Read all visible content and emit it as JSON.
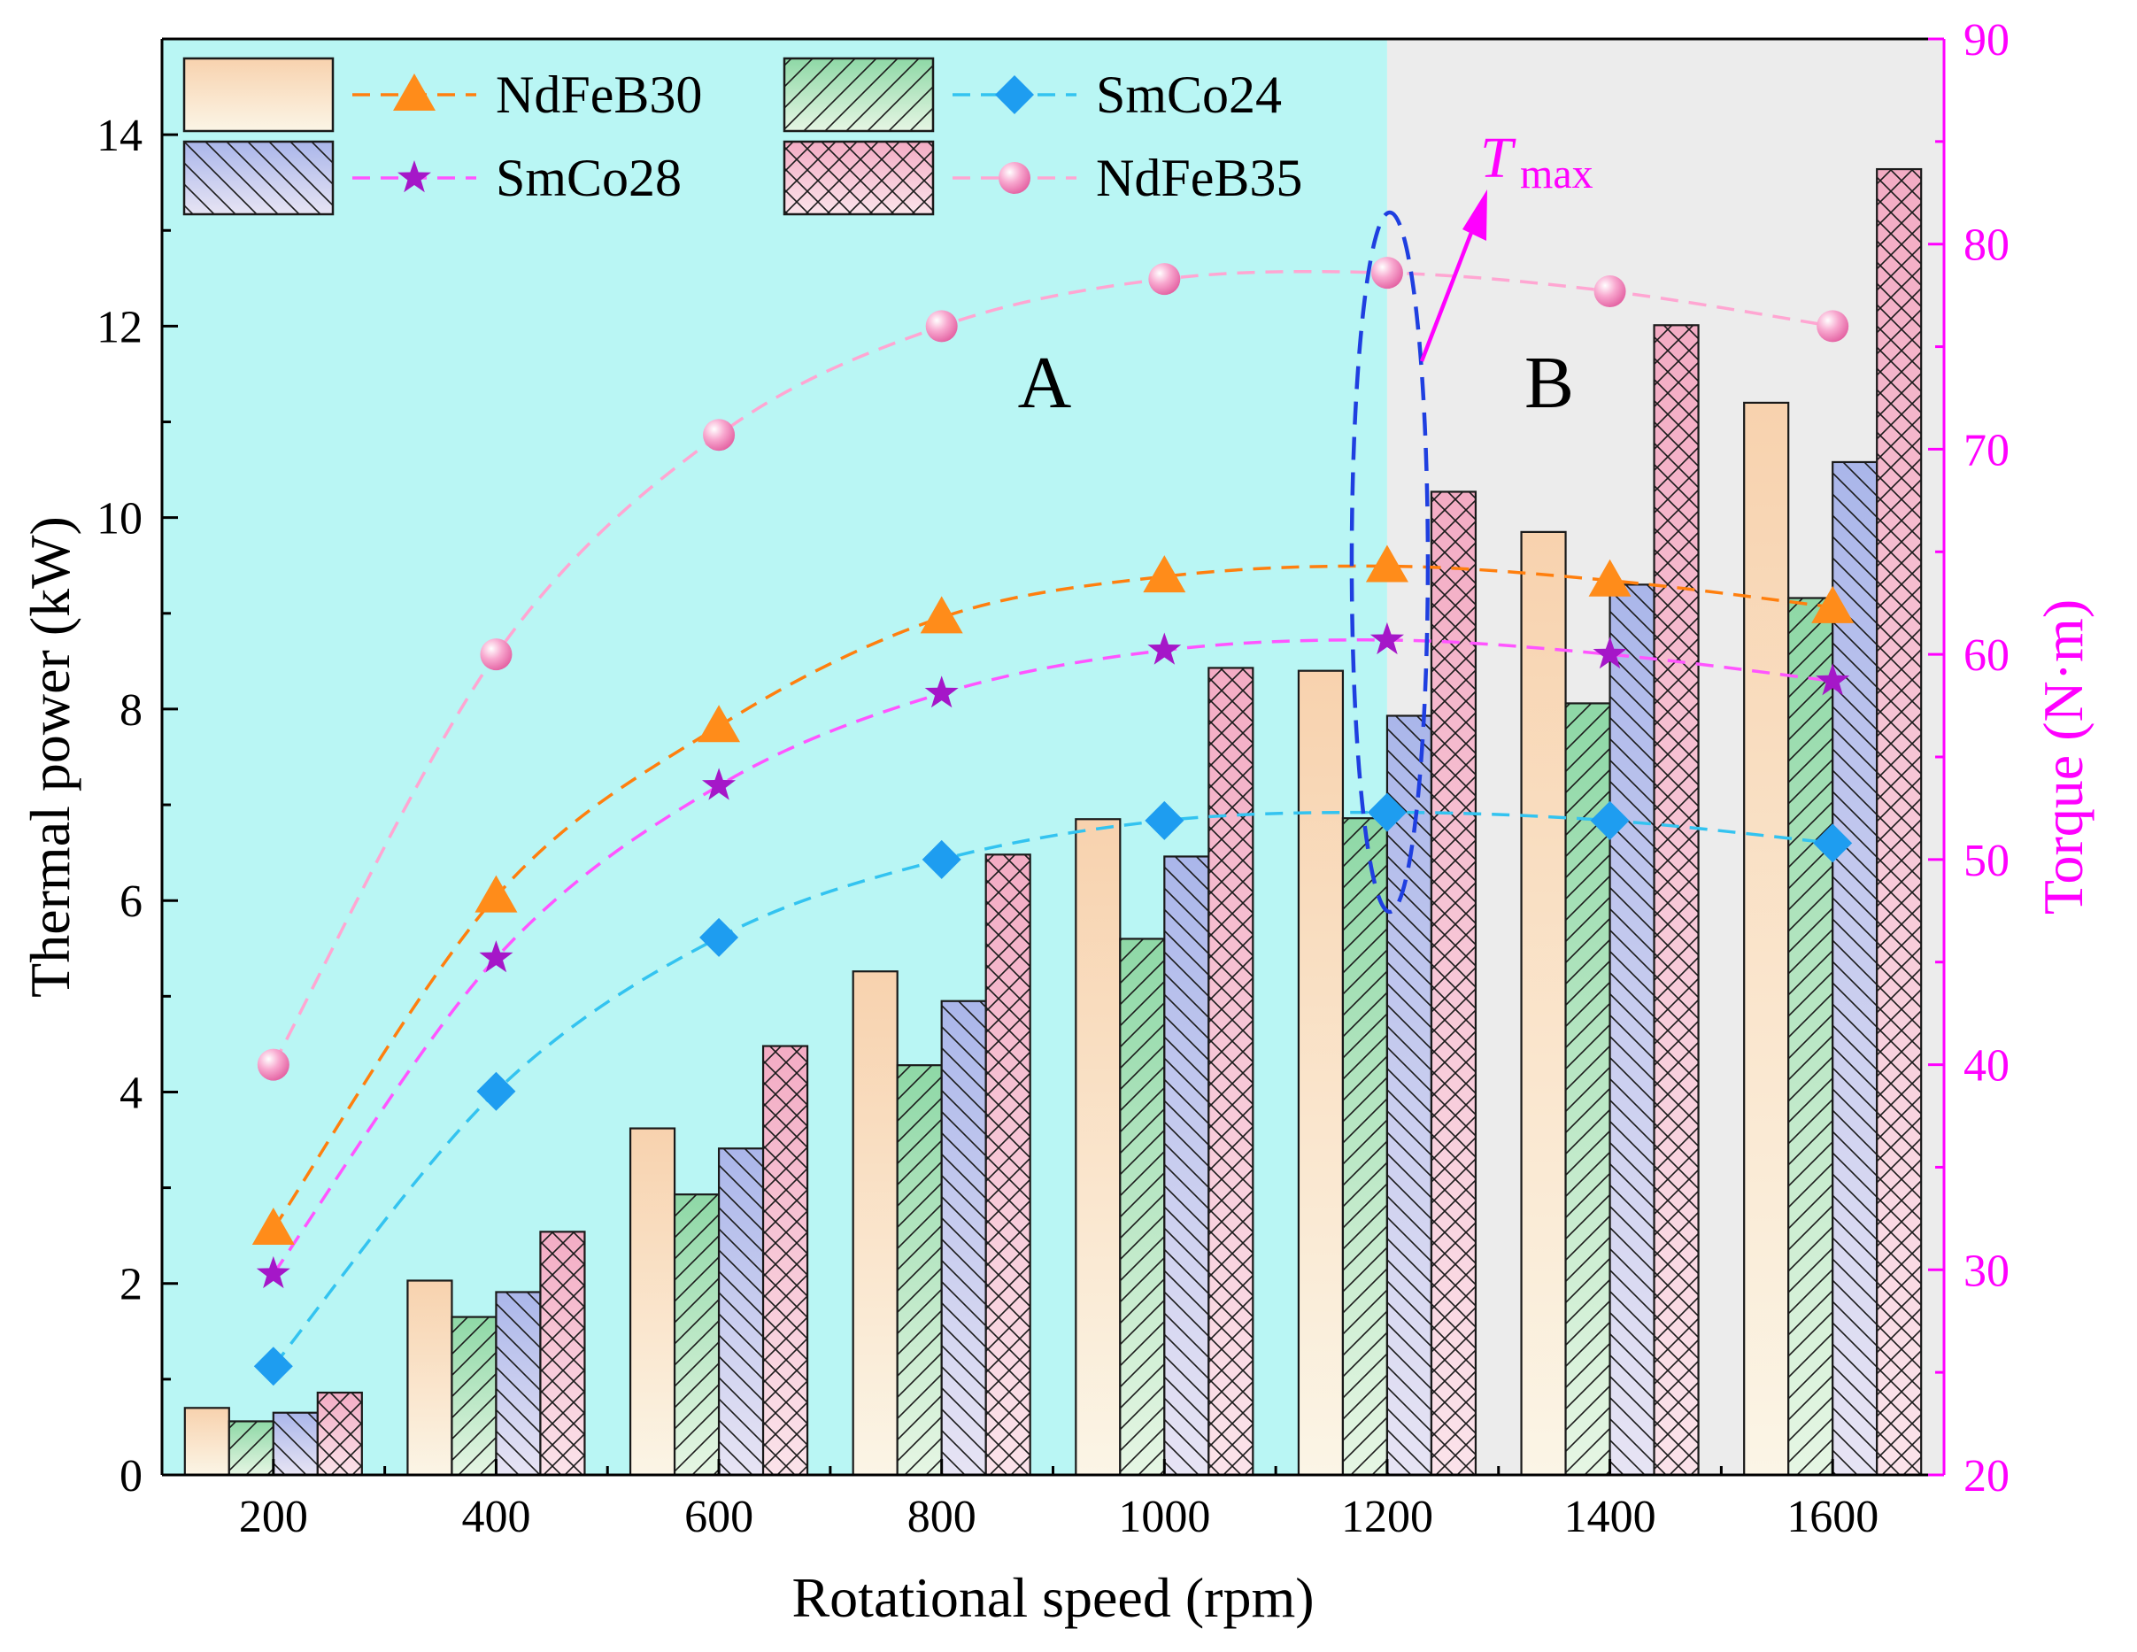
{
  "chart_data": {
    "type": "bar",
    "x": [
      200,
      400,
      600,
      800,
      1000,
      1200,
      1400,
      1600
    ],
    "xlabel": "Rotational speed (rpm)",
    "ylabel": "Thermal power (kW)",
    "y2label": "Torque (N·m)",
    "ylim": [
      0,
      15
    ],
    "y2lim": [
      20,
      90
    ],
    "xticks": [
      "200",
      "400",
      "600",
      "800",
      "1000",
      "1200",
      "1400",
      "1600"
    ],
    "yticks": [
      "0",
      "2",
      "4",
      "6",
      "8",
      "10",
      "12",
      "14"
    ],
    "y2ticks": [
      "20",
      "30",
      "40",
      "50",
      "60",
      "70",
      "80",
      "90"
    ],
    "bar_series": [
      {
        "name": "NdFeB30",
        "values": [
          0.7,
          2.03,
          3.62,
          5.26,
          6.85,
          8.4,
          9.85,
          11.2
        ]
      },
      {
        "name": "SmCo24",
        "values": [
          0.56,
          1.65,
          2.93,
          4.28,
          5.6,
          6.86,
          8.06,
          9.16
        ]
      },
      {
        "name": "SmCo28",
        "values": [
          0.65,
          1.91,
          3.41,
          4.95,
          6.46,
          7.93,
          9.3,
          10.58
        ]
      },
      {
        "name": "NdFeB35",
        "values": [
          0.86,
          2.54,
          4.48,
          6.48,
          8.43,
          10.27,
          12.01,
          13.64
        ]
      }
    ],
    "line_series": [
      {
        "name": "NdFeB30",
        "axis": "right",
        "values": [
          32.0,
          48.2,
          56.5,
          61.8,
          63.8,
          64.3,
          63.6,
          62.3
        ]
      },
      {
        "name": "SmCo28",
        "axis": "right",
        "values": [
          29.8,
          45.2,
          53.6,
          58.1,
          60.2,
          60.7,
          60.0,
          58.7
        ]
      },
      {
        "name": "SmCo24",
        "axis": "right",
        "values": [
          25.3,
          38.7,
          46.2,
          50.0,
          51.9,
          52.3,
          51.9,
          50.8
        ]
      },
      {
        "name": "NdFeB35",
        "axis": "right",
        "values": [
          40.0,
          60.0,
          70.7,
          76.0,
          78.3,
          78.6,
          77.7,
          76.0
        ]
      }
    ],
    "regions": [
      {
        "label": "A",
        "x_range": [
          100,
          1200
        ]
      },
      {
        "label": "B",
        "x_range": [
          1200,
          1700
        ]
      }
    ],
    "annotation": {
      "text_main": "T",
      "text_sub": "max",
      "target_x": 1200
    }
  },
  "legend": [
    {
      "name": "NdFeB30",
      "bar_fill": "#f6d9bd",
      "line_color": "#ff7f0e",
      "marker": "triangle"
    },
    {
      "name": "SmCo24",
      "bar_fill": "#a8e0b8",
      "line_color": "#33c3f0",
      "marker": "diamond"
    },
    {
      "name": "SmCo28",
      "bar_fill": "#c2caec",
      "line_color": "#ff55ff",
      "marker": "star"
    },
    {
      "name": "NdFeB35",
      "bar_fill": "#f5c2d2",
      "line_color": "#ffa6d2",
      "marker": "sphere"
    }
  ],
  "colors": {
    "regionA": "#b9f6f4",
    "regionB": "#ececec",
    "right_axis": "#ff00ff",
    "ellipse": "#1f3fe0",
    "marker_NdFeB30": "#ff8c1a",
    "marker_SmCo24": "#1e9df0",
    "marker_SmCo28": "#a517c8",
    "marker_NdFeB35": "#f07ab8"
  }
}
